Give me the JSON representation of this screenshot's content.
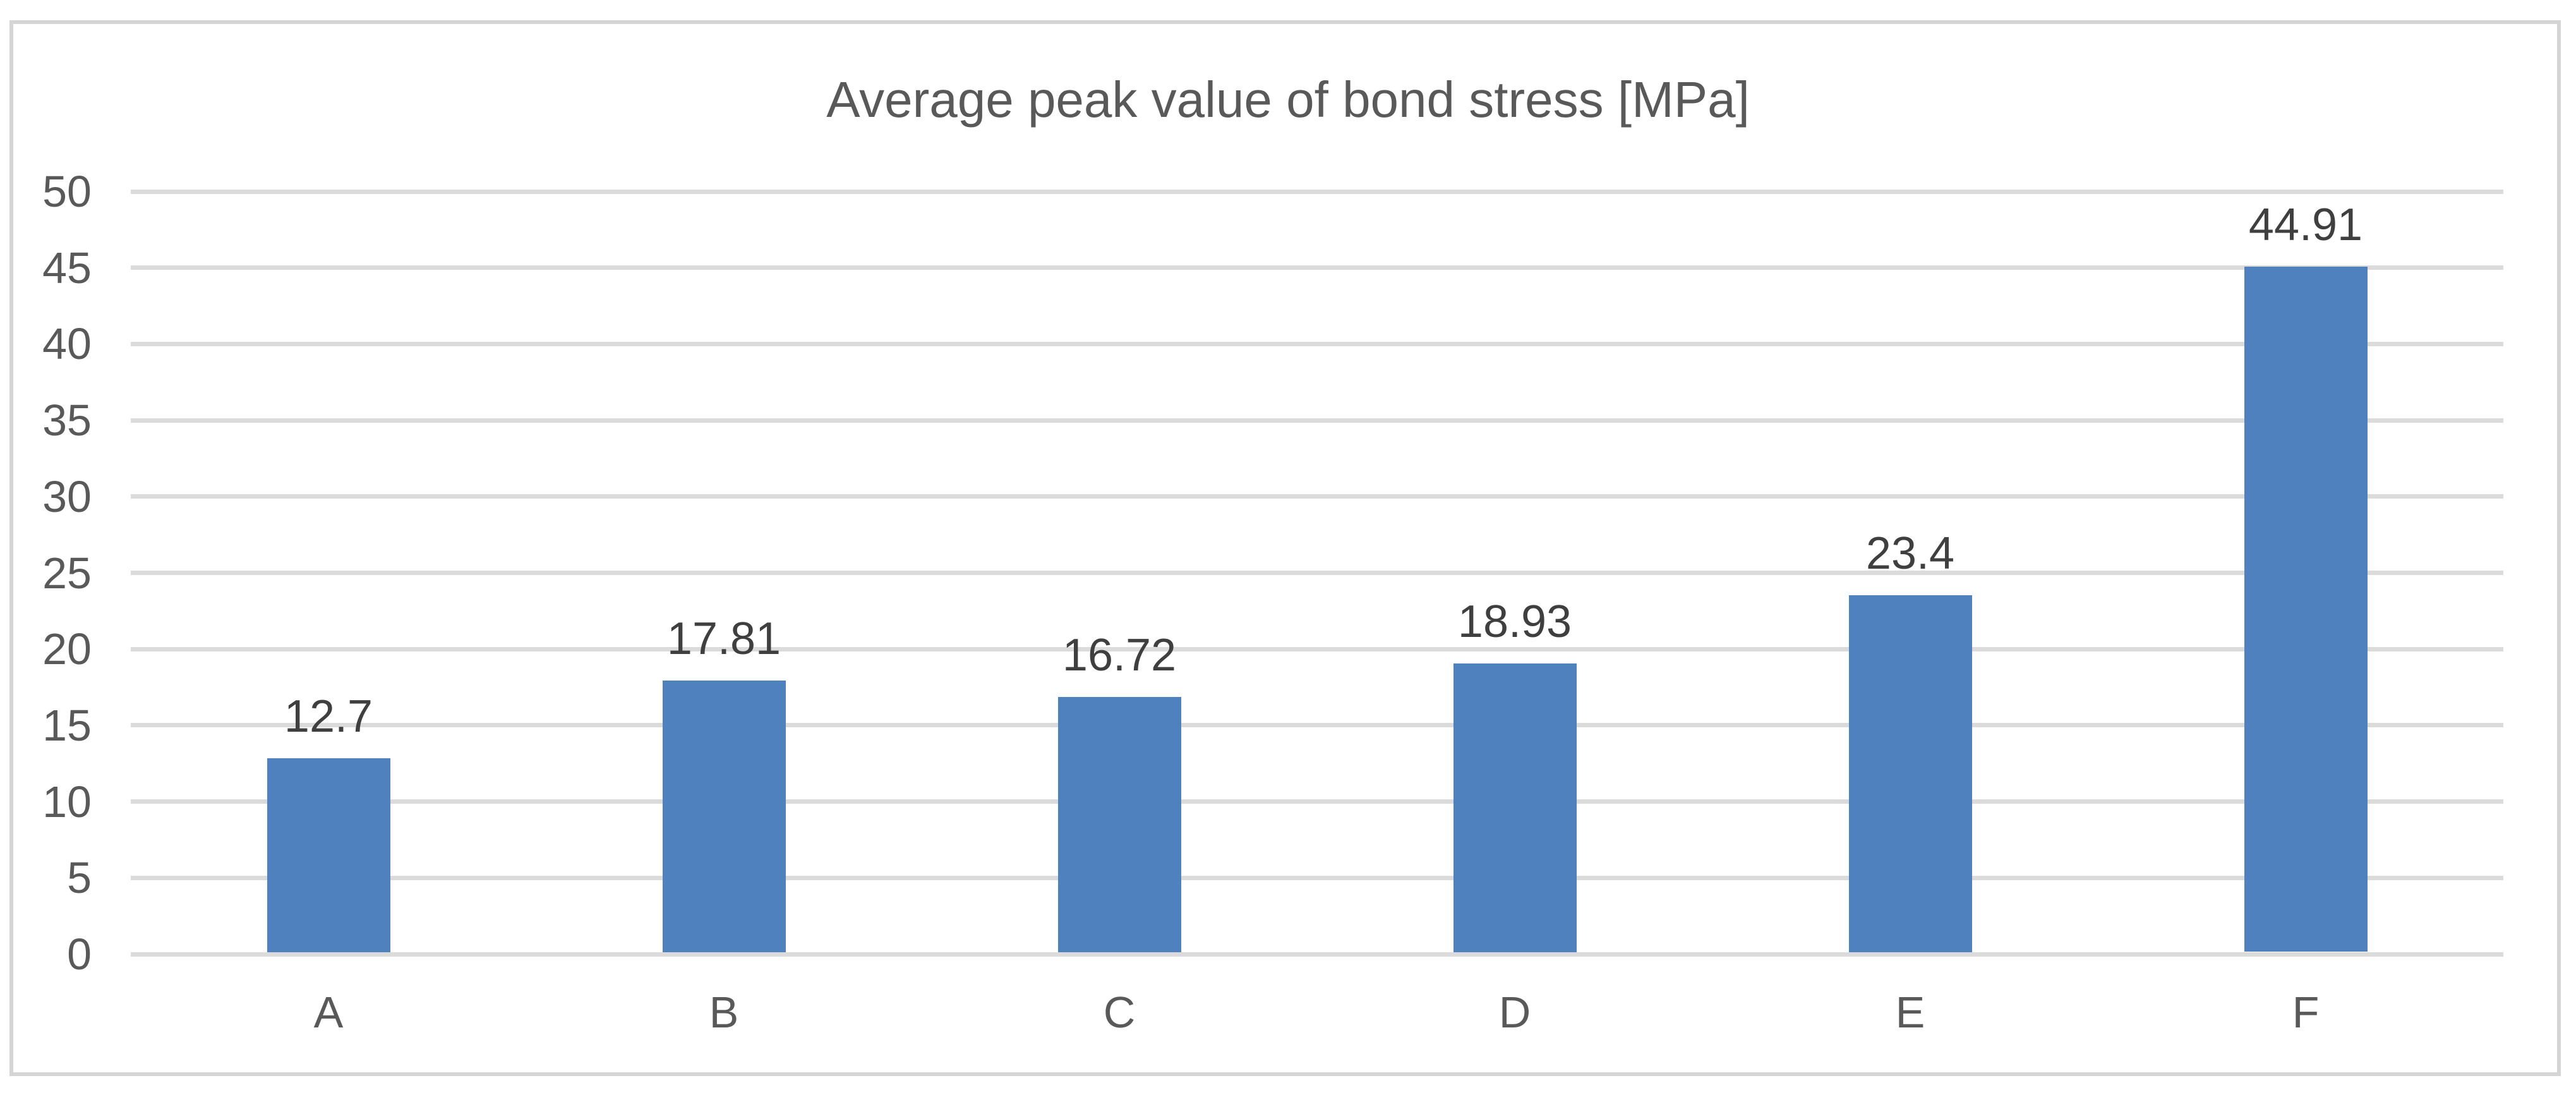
{
  "chart_data": {
    "type": "bar",
    "title": "Average peak value of bond stress [MPa]",
    "categories": [
      "A",
      "B",
      "C",
      "D",
      "E",
      "F"
    ],
    "values": [
      12.7,
      17.81,
      16.72,
      18.93,
      23.4,
      44.91
    ],
    "value_labels": [
      "12.7",
      "17.81",
      "16.72",
      "18.93",
      "23.4",
      "44.91"
    ],
    "xlabel": "",
    "ylabel": "",
    "ylim": [
      0,
      50
    ],
    "ytick_step": 5,
    "ytick_labels": [
      "0",
      "5",
      "10",
      "15",
      "20",
      "25",
      "30",
      "35",
      "40",
      "45",
      "50"
    ],
    "grid": true,
    "legend_position": "none",
    "colors": {
      "bar": "#4E81BD",
      "gridline": "#DBDBDB",
      "axis_baseline": "#DBDBDB",
      "tick_label": "#595959",
      "category_label": "#595959",
      "data_label": "#3F3F3F",
      "title": "#595959",
      "chart_border": "#D5D5D5",
      "background": "#FFFFFF"
    }
  }
}
